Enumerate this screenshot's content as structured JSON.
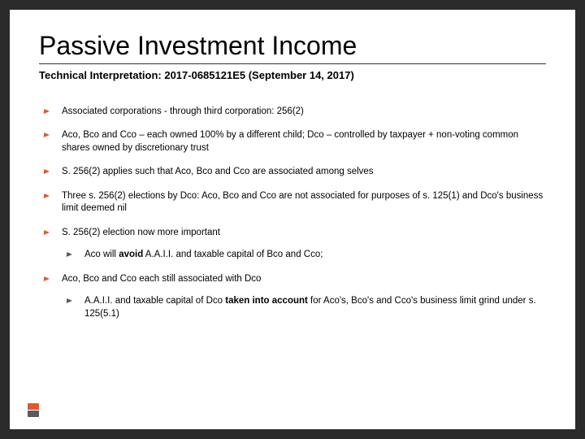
{
  "colors": {
    "frame": "#2b2b2b",
    "slide_bg": "#ffffff",
    "text": "#000000",
    "rule": "#333333",
    "accent": "#d95b2e",
    "sub_bullet": "#5a5a5a"
  },
  "typography": {
    "title_fontsize": 32,
    "subtitle_fontsize": 13,
    "body_fontsize": 11.5,
    "font_family": "Arial"
  },
  "title": "Passive Investment Income",
  "subtitle": "Technical Interpretation: 2017-0685121E5 (September 14, 2017)",
  "bullets": [
    {
      "text": "Associated corporations - through third corporation: 256(2)"
    },
    {
      "text": "Aco, Bco and Cco – each owned 100% by a different child; Dco – controlled by taxpayer + non-voting common shares owned by discretionary trust"
    },
    {
      "text": "S. 256(2) applies such that Aco, Bco and Cco are associated among selves"
    },
    {
      "text": "Three s. 256(2) elections by Dco: Aco, Bco and Cco are not associated for purposes of s. 125(1) and Dco's business limit deemed nil"
    },
    {
      "text": "S. 256(2) election now more important",
      "children": [
        {
          "pre": "Aco will ",
          "bold": "avoid",
          "post": " A.A.I.I. and taxable capital of Bco and Cco;"
        }
      ]
    },
    {
      "text": "Aco, Bco and Cco each still associated with Dco",
      "children": [
        {
          "pre": "A.A.I.I. and taxable capital of Dco ",
          "bold": "taken into account",
          "post": " for Aco's, Bco's and Cco's business limit grind under s. 125(5.1)"
        }
      ]
    }
  ]
}
